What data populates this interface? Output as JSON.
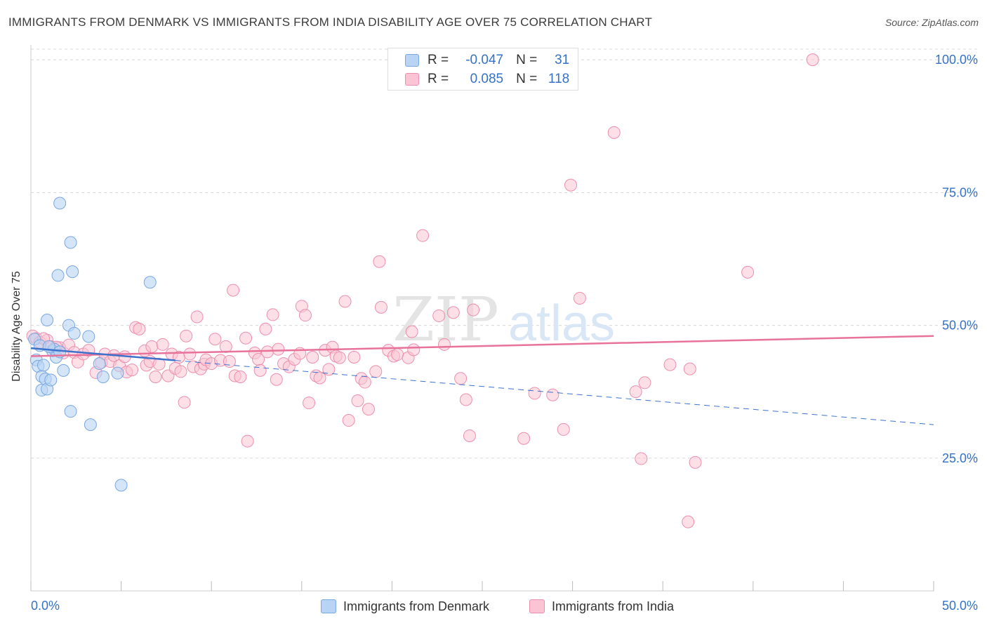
{
  "title": "IMMIGRANTS FROM DENMARK VS IMMIGRANTS FROM INDIA DISABILITY AGE OVER 75 CORRELATION CHART",
  "source": "Source: ZipAtlas.com",
  "watermark": {
    "zip": "ZIP",
    "atlas": "atlas"
  },
  "legend": {
    "r_label": "R =",
    "n_label": "N =",
    "denmark": {
      "r": "-0.047",
      "n": "31"
    },
    "india": {
      "r": "0.085",
      "n": "118"
    }
  },
  "colors": {
    "denmark_fill": "#b8d3f4",
    "denmark_stroke": "#7aa7e0",
    "denmark_line": "#3d72cc",
    "india_fill": "#fac4d4",
    "india_stroke": "#ec8fae",
    "india_line": "#e8729a",
    "axis_text": "#3572c6",
    "grid": "#d8d8d8"
  },
  "chart_data": {
    "type": "scatter",
    "title": "IMMIGRANTS FROM DENMARK VS IMMIGRANTS FROM INDIA DISABILITY AGE OVER 75 CORRELATION CHART",
    "xlabel": "",
    "ylabel": "Disability Age Over 75",
    "xlim": [
      0,
      50
    ],
    "ylim": [
      0,
      102
    ],
    "x_tick_labels": [
      "0.0%",
      "50.0%"
    ],
    "y_ticks": [
      25,
      50,
      75,
      100
    ],
    "y_tick_labels": [
      "25.0%",
      "50.0%",
      "75.0%",
      "100.0%"
    ],
    "grid": true,
    "legend_position": "top-center",
    "series": [
      {
        "name": "Immigrants from Denmark",
        "r": -0.047,
        "n": 31,
        "trend": {
          "x0": 0,
          "y0": 45.7,
          "x1": 50,
          "y1": 31.3,
          "solid_until": 8
        },
        "points": [
          [
            0.3,
            43.5
          ],
          [
            0.4,
            42.3
          ],
          [
            0.6,
            40.4
          ],
          [
            0.6,
            37.8
          ],
          [
            0.7,
            42.5
          ],
          [
            0.8,
            39.9
          ],
          [
            0.9,
            38.0
          ],
          [
            0.9,
            51.0
          ],
          [
            1.1,
            39.7
          ],
          [
            1.2,
            45.2
          ],
          [
            1.3,
            45.5
          ],
          [
            1.4,
            44.0
          ],
          [
            1.5,
            59.4
          ],
          [
            1.6,
            45.0
          ],
          [
            1.6,
            73.0
          ],
          [
            1.8,
            41.5
          ],
          [
            2.1,
            50.0
          ],
          [
            2.2,
            33.8
          ],
          [
            2.2,
            65.6
          ],
          [
            2.3,
            60.1
          ],
          [
            2.4,
            48.5
          ],
          [
            3.2,
            47.9
          ],
          [
            3.3,
            31.3
          ],
          [
            3.8,
            42.8
          ],
          [
            4.0,
            40.3
          ],
          [
            4.8,
            41.0
          ],
          [
            5.0,
            19.9
          ],
          [
            6.6,
            58.1
          ],
          [
            0.2,
            47.4
          ],
          [
            0.5,
            46.2
          ],
          [
            1.0,
            46.0
          ]
        ]
      },
      {
        "name": "Immigrants from India",
        "r": 0.085,
        "n": 118,
        "trend": {
          "x0": 0,
          "y0": 44.2,
          "x1": 50,
          "y1": 48.0
        },
        "points": [
          [
            0.1,
            48.0
          ],
          [
            0.3,
            47.5
          ],
          [
            0.5,
            46.8
          ],
          [
            0.9,
            47.2
          ],
          [
            1.1,
            46.0
          ],
          [
            1.6,
            45.8
          ],
          [
            1.8,
            44.8
          ],
          [
            2.1,
            46.3
          ],
          [
            2.4,
            44.9
          ],
          [
            2.6,
            43.1
          ],
          [
            2.9,
            44.6
          ],
          [
            3.2,
            45.3
          ],
          [
            3.6,
            41.1
          ],
          [
            3.9,
            43.0
          ],
          [
            4.1,
            44.6
          ],
          [
            4.4,
            43.2
          ],
          [
            4.6,
            44.3
          ],
          [
            4.9,
            42.4
          ],
          [
            5.2,
            44.1
          ],
          [
            5.3,
            41.2
          ],
          [
            5.6,
            41.6
          ],
          [
            5.8,
            49.6
          ],
          [
            6.0,
            49.3
          ],
          [
            6.3,
            45.2
          ],
          [
            6.4,
            42.5
          ],
          [
            6.6,
            43.2
          ],
          [
            6.7,
            46.0
          ],
          [
            6.9,
            40.3
          ],
          [
            7.1,
            42.7
          ],
          [
            7.3,
            46.4
          ],
          [
            7.6,
            40.5
          ],
          [
            7.8,
            44.6
          ],
          [
            8.0,
            41.9
          ],
          [
            8.2,
            44.0
          ],
          [
            8.3,
            41.3
          ],
          [
            8.5,
            35.5
          ],
          [
            8.6,
            48.0
          ],
          [
            8.8,
            44.6
          ],
          [
            9.0,
            42.2
          ],
          [
            9.2,
            51.6
          ],
          [
            9.4,
            41.8
          ],
          [
            9.6,
            42.7
          ],
          [
            9.7,
            43.5
          ],
          [
            10.0,
            42.8
          ],
          [
            10.2,
            47.4
          ],
          [
            10.5,
            43.4
          ],
          [
            10.8,
            46.0
          ],
          [
            11.0,
            43.2
          ],
          [
            11.2,
            56.6
          ],
          [
            11.3,
            40.5
          ],
          [
            11.6,
            40.3
          ],
          [
            11.9,
            47.6
          ],
          [
            12.0,
            28.2
          ],
          [
            12.4,
            44.8
          ],
          [
            12.6,
            43.6
          ],
          [
            12.7,
            41.5
          ],
          [
            13.0,
            49.3
          ],
          [
            13.1,
            45.0
          ],
          [
            13.4,
            52.0
          ],
          [
            13.6,
            39.8
          ],
          [
            13.7,
            45.5
          ],
          [
            14.0,
            42.8
          ],
          [
            14.3,
            42.2
          ],
          [
            14.6,
            43.6
          ],
          [
            14.9,
            44.7
          ],
          [
            15.0,
            53.6
          ],
          [
            15.2,
            51.9
          ],
          [
            15.4,
            35.4
          ],
          [
            15.6,
            44.0
          ],
          [
            15.8,
            40.5
          ],
          [
            16.0,
            40.1
          ],
          [
            16.3,
            45.3
          ],
          [
            16.5,
            41.7
          ],
          [
            16.7,
            45.9
          ],
          [
            16.9,
            44.2
          ],
          [
            17.1,
            43.9
          ],
          [
            17.4,
            54.5
          ],
          [
            17.6,
            32.1
          ],
          [
            17.9,
            44.0
          ],
          [
            18.1,
            35.8
          ],
          [
            18.3,
            40.0
          ],
          [
            18.5,
            39.3
          ],
          [
            18.7,
            34.2
          ],
          [
            19.1,
            41.3
          ],
          [
            19.3,
            62.0
          ],
          [
            19.4,
            53.4
          ],
          [
            19.8,
            45.3
          ],
          [
            20.1,
            44.2
          ],
          [
            20.3,
            44.5
          ],
          [
            20.9,
            43.9
          ],
          [
            21.1,
            48.8
          ],
          [
            21.2,
            45.4
          ],
          [
            21.7,
            66.9
          ],
          [
            22.6,
            51.8
          ],
          [
            22.9,
            46.4
          ],
          [
            23.4,
            52.4
          ],
          [
            23.8,
            40.0
          ],
          [
            24.1,
            36.0
          ],
          [
            24.3,
            29.2
          ],
          [
            24.5,
            52.9
          ],
          [
            27.3,
            28.7
          ],
          [
            27.9,
            37.2
          ],
          [
            28.9,
            36.9
          ],
          [
            29.5,
            30.4
          ],
          [
            29.9,
            76.4
          ],
          [
            30.4,
            55.1
          ],
          [
            32.3,
            86.3
          ],
          [
            33.5,
            37.5
          ],
          [
            33.8,
            24.9
          ],
          [
            34.0,
            39.2
          ],
          [
            35.4,
            42.6
          ],
          [
            36.4,
            13.0
          ],
          [
            36.5,
            41.8
          ],
          [
            36.8,
            24.2
          ],
          [
            39.7,
            60.0
          ],
          [
            43.3,
            100.0
          ],
          [
            0.7,
            47.5
          ],
          [
            1.4,
            45.9
          ]
        ]
      }
    ]
  },
  "bottom_legend": {
    "denmark": "Immigrants from Denmark",
    "india": "Immigrants from India"
  }
}
